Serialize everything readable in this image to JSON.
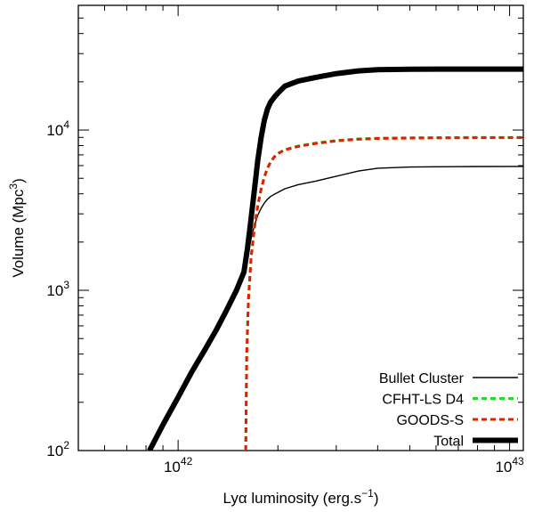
{
  "chart_data": {
    "type": "line",
    "xscale": "log",
    "yscale": "log",
    "xlim": [
      5e+41,
      1.1e+43
    ],
    "ylim": [
      100,
      60000
    ],
    "xlabel_prefix": "Ly",
    "xlabel_greek": "α",
    "xlabel_main": " luminosity (erg.s",
    "xlabel_exp": "−1",
    "xlabel_close": ")",
    "ylabel_main": "Volume (Mpc",
    "ylabel_exp": "3",
    "ylabel_close": ")",
    "x_ticks": [
      {
        "value": 1e+42,
        "base": "10",
        "exp": "42"
      },
      {
        "value": 1e+43,
        "base": "10",
        "exp": "43"
      }
    ],
    "y_ticks": [
      {
        "value": 100,
        "base": "10",
        "exp": "2"
      },
      {
        "value": 1000,
        "base": "10",
        "exp": "3"
      },
      {
        "value": 10000,
        "base": "10",
        "exp": "4"
      }
    ],
    "series": [
      {
        "name": "Bullet Cluster",
        "color": "#000000",
        "style": "solid-thin",
        "x": [
          1.58e+42,
          1.62e+42,
          1.66e+42,
          1.7e+42,
          1.74e+42,
          1.78e+42,
          1.82e+42,
          1.86e+42,
          1.9e+42,
          1.95e+42,
          2e+42,
          2.1e+42,
          2.3e+42,
          2.6e+42,
          3e+42,
          3.5e+42,
          4e+42,
          5e+42,
          6e+42,
          8e+42,
          1.1e+43
        ],
        "y": [
          1300,
          1650,
          2100,
          2550,
          2950,
          3250,
          3500,
          3700,
          3850,
          3970,
          4080,
          4300,
          4560,
          4800,
          5150,
          5550,
          5780,
          5880,
          5900,
          5920,
          5930
        ]
      },
      {
        "name": "CFHT-LS D4",
        "color": "#22dd22",
        "style": "dashed",
        "x": [
          1.6e+42,
          1.61e+42,
          1.63e+42,
          1.66e+42,
          1.7e+42,
          1.74e+42,
          1.78e+42,
          1.82e+42,
          1.86e+42,
          1.9e+42,
          1.95e+42,
          2e+42,
          2.1e+42,
          2.3e+42,
          2.6e+42,
          3e+42,
          3.5e+42,
          4e+42,
          5e+42,
          6e+42,
          8e+42,
          1.1e+43
        ],
        "y": [
          100,
          400,
          900,
          1600,
          2500,
          3400,
          4300,
          5100,
          5800,
          6300,
          6800,
          7150,
          7550,
          7950,
          8300,
          8600,
          8800,
          8900,
          8950,
          8970,
          8990,
          9000
        ]
      },
      {
        "name": "GOODS-S",
        "color": "#dd2200",
        "style": "dashed",
        "x": [
          1.6e+42,
          1.61e+42,
          1.63e+42,
          1.66e+42,
          1.7e+42,
          1.74e+42,
          1.78e+42,
          1.82e+42,
          1.86e+42,
          1.9e+42,
          1.95e+42,
          2e+42,
          2.1e+42,
          2.3e+42,
          2.6e+42,
          3e+42,
          3.5e+42,
          4e+42,
          5e+42,
          6e+42,
          8e+42,
          1.1e+43
        ],
        "y": [
          100,
          390,
          880,
          1580,
          2480,
          3380,
          4280,
          5080,
          5780,
          6280,
          6780,
          7120,
          7520,
          7900,
          8250,
          8560,
          8760,
          8860,
          8910,
          8930,
          8950,
          8960
        ]
      },
      {
        "name": "Total",
        "color": "#000000",
        "style": "solid-thick",
        "x": [
          8.2e+41,
          9e+41,
          1e+42,
          1.1e+42,
          1.2e+42,
          1.3e+42,
          1.4e+42,
          1.5e+42,
          1.58e+42,
          1.62e+42,
          1.66e+42,
          1.7e+42,
          1.74e+42,
          1.78e+42,
          1.82e+42,
          1.86e+42,
          1.9e+42,
          1.95e+42,
          2e+42,
          2.1e+42,
          2.3e+42,
          2.6e+42,
          3e+42,
          3.5e+42,
          4e+42,
          5e+42,
          6e+42,
          8e+42,
          1.1e+43
        ],
        "y": [
          100,
          145,
          215,
          310,
          420,
          560,
          750,
          1000,
          1300,
          1850,
          2800,
          4300,
          6500,
          9000,
          11500,
          13500,
          14900,
          16000,
          17000,
          18800,
          20200,
          21300,
          22500,
          23400,
          23800,
          23950,
          24000,
          24000,
          24000
        ]
      }
    ],
    "legend": {
      "position": "bottom-right",
      "entries": [
        "Bullet Cluster",
        "CFHT-LS D4",
        "GOODS-S",
        "Total"
      ]
    }
  }
}
